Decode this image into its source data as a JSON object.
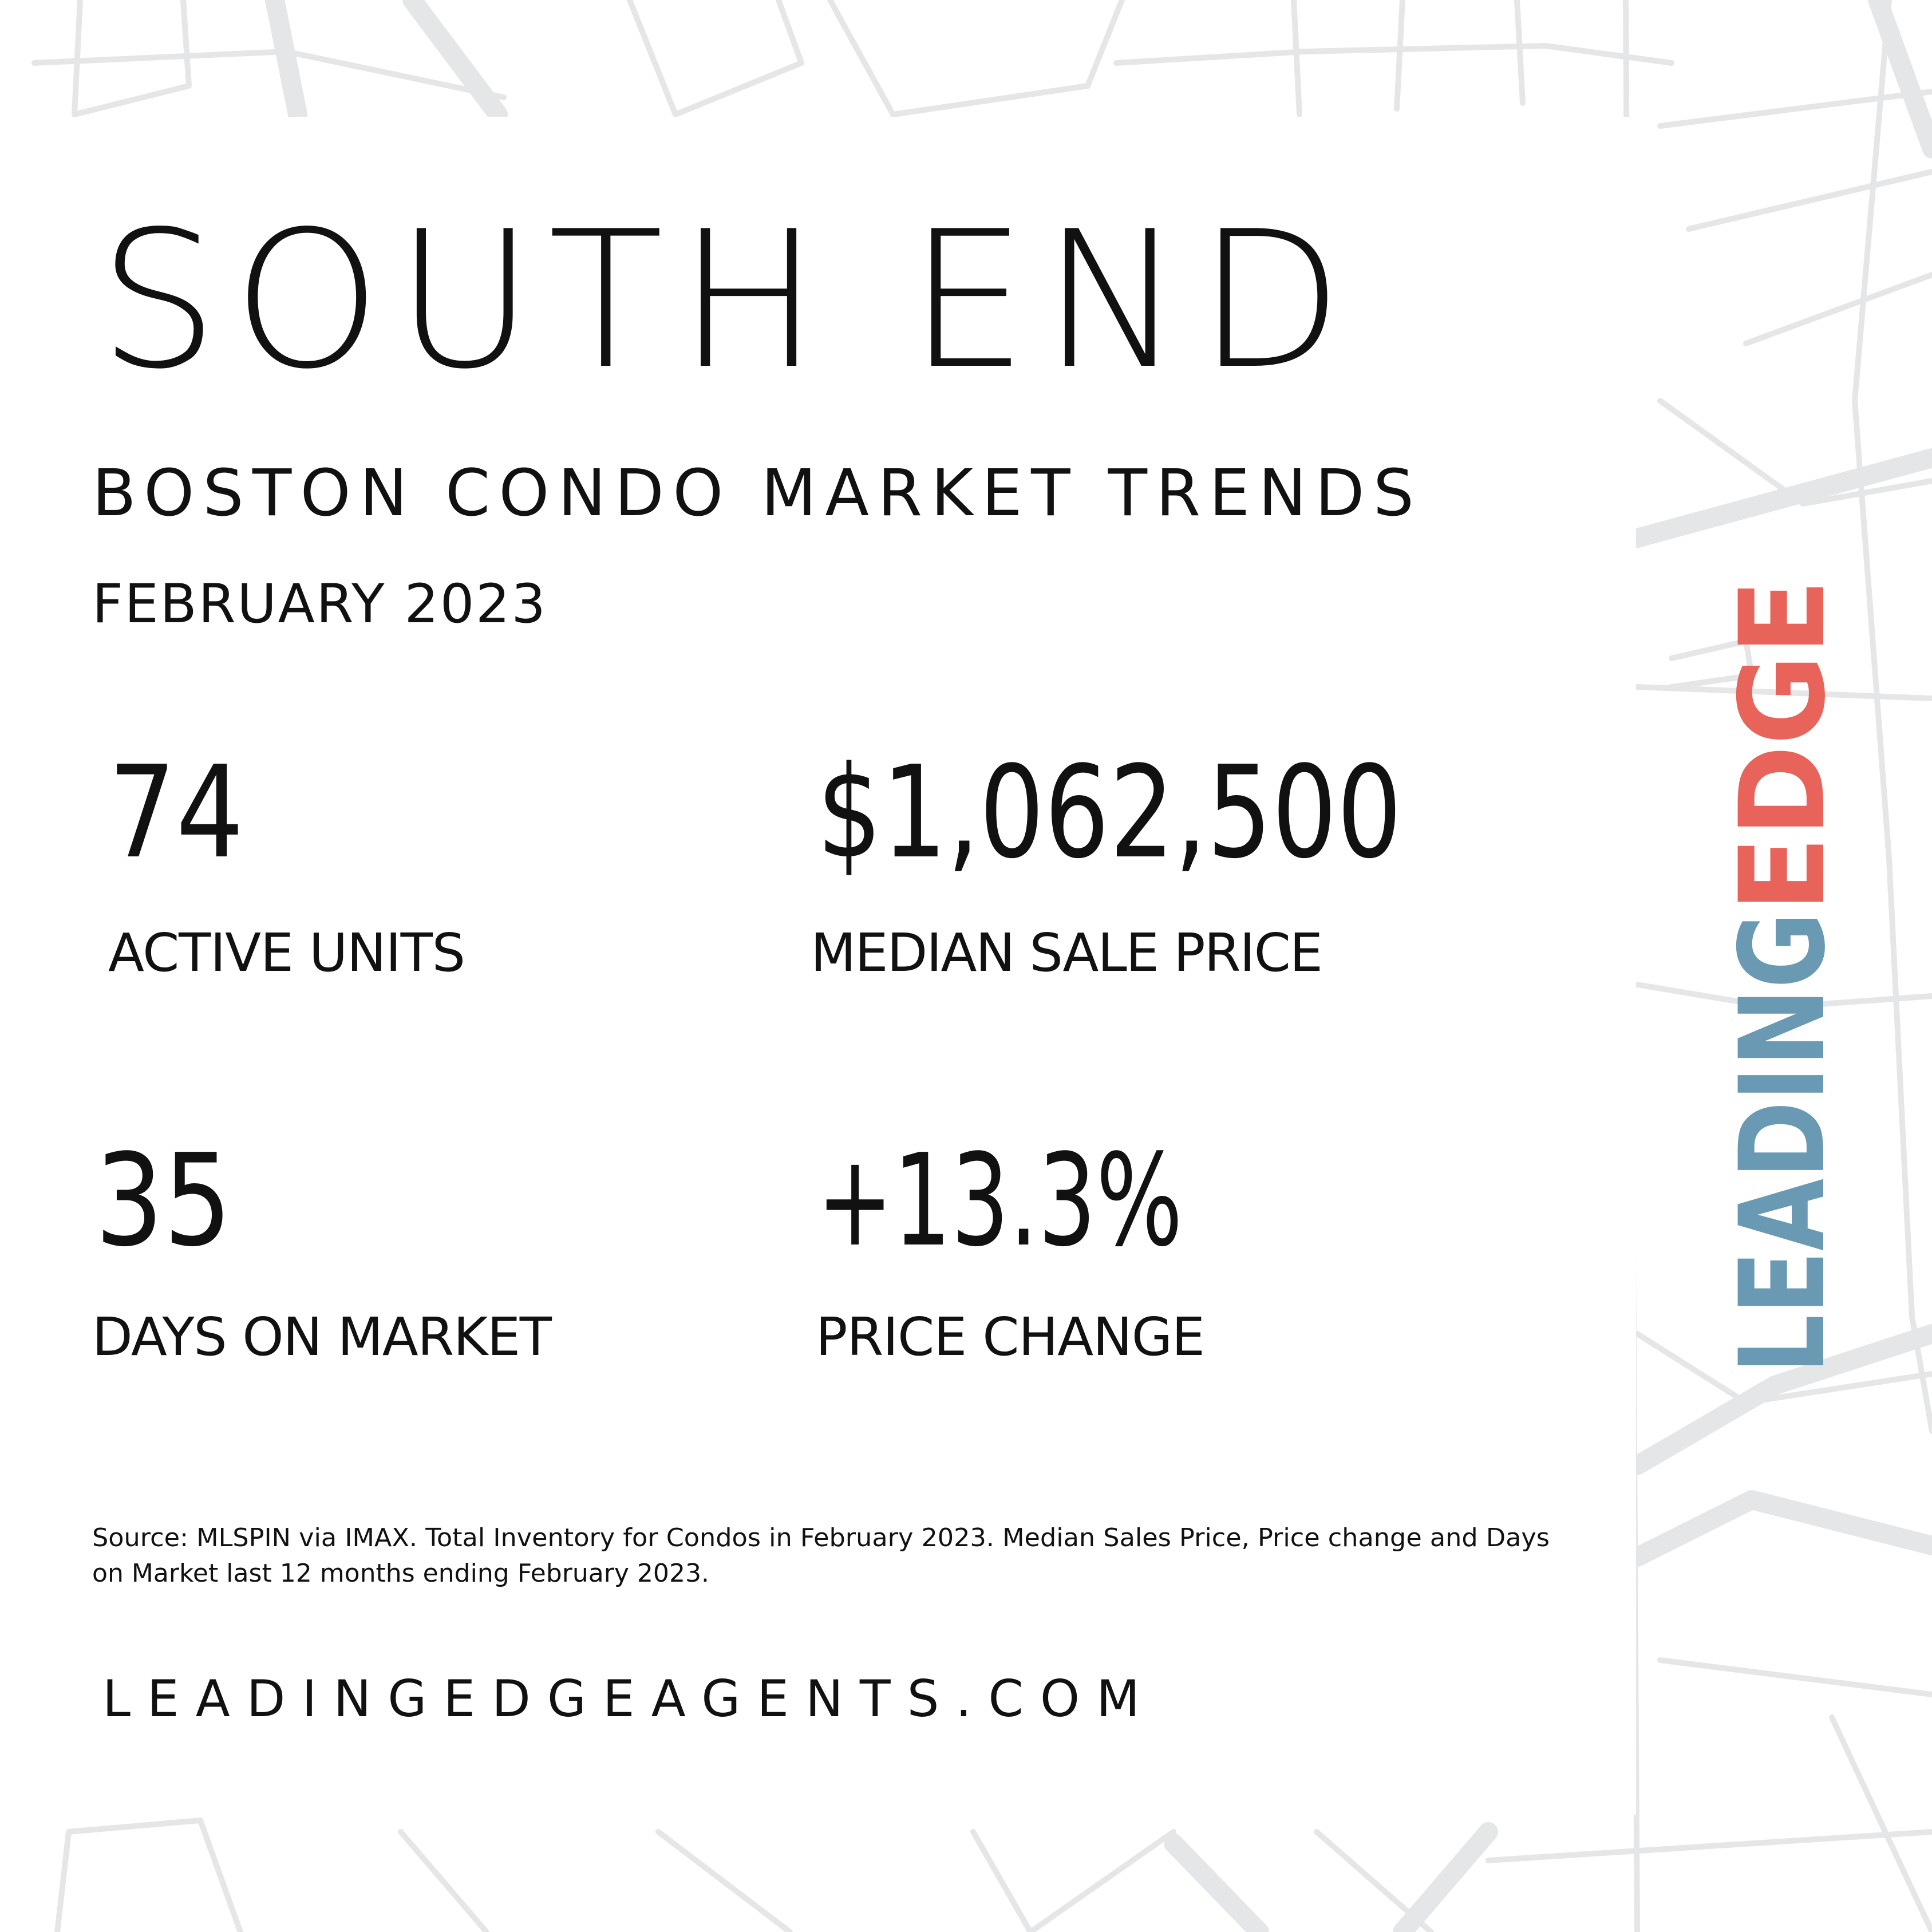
{
  "title": "SOUTH END",
  "subtitle": "BOSTON CONDO MARKET TRENDS",
  "date": "FEBRUARY 2023",
  "stats": [
    {
      "value": "74",
      "label": "ACTIVE UNITS"
    },
    {
      "value": "$1,062,500",
      "label": "MEDIAN SALE PRICE"
    },
    {
      "value": "35",
      "label": "DAYS ON MARKET"
    },
    {
      "value": "+13.3%",
      "label": "PRICE CHANGE"
    }
  ],
  "source": [
    "Source: MLSPIN via IMAX. Total Inventory for Condos in February 2023. Median Sales Price, Price change and Days",
    "on Market last 12 months ending February 2023."
  ],
  "website": "LEADINGEDGEAGENTS.COM",
  "logo": {
    "first": "LEADING",
    "second": "EDGE"
  }
}
